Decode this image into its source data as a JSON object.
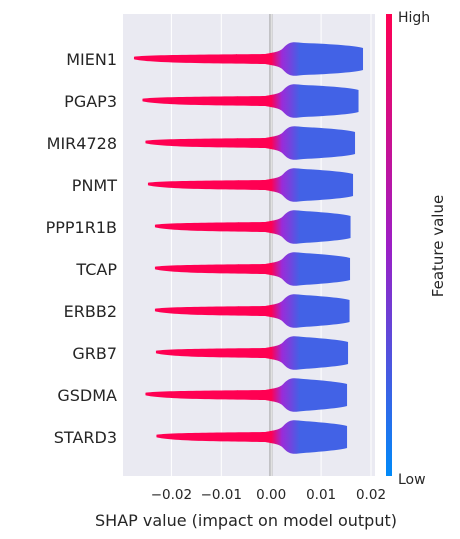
{
  "chart_data": {
    "type": "violin",
    "xlabel": "SHAP value (impact on model output)",
    "xticks": [
      -0.02,
      -0.01,
      0.0,
      0.01,
      0.02
    ],
    "xtick_labels": [
      "−0.02",
      "−0.01",
      "0.00",
      "0.01",
      "0.02"
    ],
    "xlim": [
      -0.0297,
      0.0208
    ],
    "grid": true,
    "background": "#EAEAF2",
    "colorbar": {
      "title": "Feature value",
      "high_label": "High",
      "low_label": "Low",
      "high_color": "#FF0052",
      "mid_color": "#9D1EC5",
      "low_color": "#008AF8"
    },
    "features": [
      {
        "name": "MIEN1",
        "min": -0.0275,
        "max": 0.0184
      },
      {
        "name": "PGAP3",
        "min": -0.0258,
        "max": 0.0175
      },
      {
        "name": "MIR4728",
        "min": -0.0252,
        "max": 0.0168
      },
      {
        "name": "PNMT",
        "min": -0.0247,
        "max": 0.0164
      },
      {
        "name": "PPP1R1B",
        "min": -0.0233,
        "max": 0.0159
      },
      {
        "name": "TCAP",
        "min": -0.0233,
        "max": 0.0158
      },
      {
        "name": "ERBB2",
        "min": -0.0233,
        "max": 0.0157
      },
      {
        "name": "GRB7",
        "min": -0.0231,
        "max": 0.0154
      },
      {
        "name": "GSDMA",
        "min": -0.0252,
        "max": 0.0152
      },
      {
        "name": "STARD3",
        "min": -0.023,
        "max": 0.0152
      }
    ]
  }
}
